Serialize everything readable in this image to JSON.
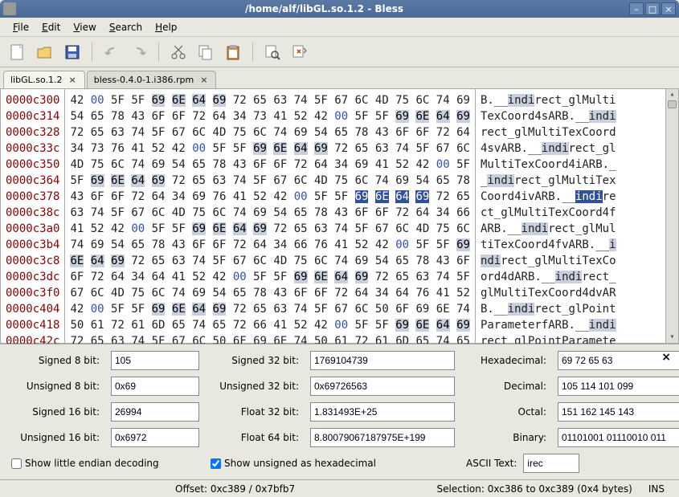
{
  "window": {
    "title": "/home/alf/libGL.so.1.2 - Bless"
  },
  "menu": [
    "File",
    "Edit",
    "View",
    "Search",
    "Help"
  ],
  "tabs": [
    {
      "label": "libGL.so.1.2",
      "active": true
    },
    {
      "label": "bless-0.4.0-1.i386.rpm",
      "active": false
    }
  ],
  "hex": {
    "offsets": [
      "0000c300",
      "0000c314",
      "0000c328",
      "0000c33c",
      "0000c350",
      "0000c364",
      "0000c378",
      "0000c38c",
      "0000c3a0",
      "0000c3b4",
      "0000c3c8",
      "0000c3dc",
      "0000c3f0",
      "0000c404",
      "0000c418",
      "0000c42c"
    ],
    "rows": [
      [
        [
          "42",
          0
        ],
        [
          "00",
          1
        ],
        [
          "5F",
          0
        ],
        [
          "5F",
          0
        ],
        [
          "69",
          2
        ],
        [
          "6E",
          2
        ],
        [
          "64",
          2
        ],
        [
          "69",
          2
        ],
        [
          "72",
          0
        ],
        [
          "65",
          0
        ],
        [
          "63",
          0
        ],
        [
          "74",
          0
        ],
        [
          "5F",
          0
        ],
        [
          "67",
          0
        ],
        [
          "6C",
          0
        ],
        [
          "4D",
          0
        ],
        [
          "75",
          0
        ],
        [
          "6C",
          0
        ],
        [
          "74",
          0
        ],
        [
          "69",
          0
        ]
      ],
      [
        [
          "54",
          0
        ],
        [
          "65",
          0
        ],
        [
          "78",
          0
        ],
        [
          "43",
          0
        ],
        [
          "6F",
          0
        ],
        [
          "6F",
          0
        ],
        [
          "72",
          0
        ],
        [
          "64",
          0
        ],
        [
          "34",
          0
        ],
        [
          "73",
          0
        ],
        [
          "41",
          0
        ],
        [
          "52",
          0
        ],
        [
          "42",
          0
        ],
        [
          "00",
          1
        ],
        [
          "5F",
          0
        ],
        [
          "5F",
          0
        ],
        [
          "69",
          2
        ],
        [
          "6E",
          2
        ],
        [
          "64",
          2
        ],
        [
          "69",
          2
        ]
      ],
      [
        [
          "72",
          0
        ],
        [
          "65",
          0
        ],
        [
          "63",
          0
        ],
        [
          "74",
          0
        ],
        [
          "5F",
          0
        ],
        [
          "67",
          0
        ],
        [
          "6C",
          0
        ],
        [
          "4D",
          0
        ],
        [
          "75",
          0
        ],
        [
          "6C",
          0
        ],
        [
          "74",
          0
        ],
        [
          "69",
          0
        ],
        [
          "54",
          0
        ],
        [
          "65",
          0
        ],
        [
          "78",
          0
        ],
        [
          "43",
          0
        ],
        [
          "6F",
          0
        ],
        [
          "6F",
          0
        ],
        [
          "72",
          0
        ],
        [
          "64",
          0
        ]
      ],
      [
        [
          "34",
          0
        ],
        [
          "73",
          0
        ],
        [
          "76",
          0
        ],
        [
          "41",
          0
        ],
        [
          "52",
          0
        ],
        [
          "42",
          0
        ],
        [
          "00",
          1
        ],
        [
          "5F",
          0
        ],
        [
          "5F",
          0
        ],
        [
          "69",
          2
        ],
        [
          "6E",
          2
        ],
        [
          "64",
          2
        ],
        [
          "69",
          2
        ],
        [
          "72",
          0
        ],
        [
          "65",
          0
        ],
        [
          "63",
          0
        ],
        [
          "74",
          0
        ],
        [
          "5F",
          0
        ],
        [
          "67",
          0
        ],
        [
          "6C",
          0
        ]
      ],
      [
        [
          "4D",
          0
        ],
        [
          "75",
          0
        ],
        [
          "6C",
          0
        ],
        [
          "74",
          0
        ],
        [
          "69",
          0
        ],
        [
          "54",
          0
        ],
        [
          "65",
          0
        ],
        [
          "78",
          0
        ],
        [
          "43",
          0
        ],
        [
          "6F",
          0
        ],
        [
          "6F",
          0
        ],
        [
          "72",
          0
        ],
        [
          "64",
          0
        ],
        [
          "34",
          0
        ],
        [
          "69",
          0
        ],
        [
          "41",
          0
        ],
        [
          "52",
          0
        ],
        [
          "42",
          0
        ],
        [
          "00",
          1
        ],
        [
          "5F",
          0
        ]
      ],
      [
        [
          "5F",
          0
        ],
        [
          "69",
          2
        ],
        [
          "6E",
          2
        ],
        [
          "64",
          2
        ],
        [
          "69",
          2
        ],
        [
          "72",
          0
        ],
        [
          "65",
          0
        ],
        [
          "63",
          0
        ],
        [
          "74",
          0
        ],
        [
          "5F",
          0
        ],
        [
          "67",
          0
        ],
        [
          "6C",
          0
        ],
        [
          "4D",
          0
        ],
        [
          "75",
          0
        ],
        [
          "6C",
          0
        ],
        [
          "74",
          0
        ],
        [
          "69",
          0
        ],
        [
          "54",
          0
        ],
        [
          "65",
          0
        ],
        [
          "78",
          0
        ]
      ],
      [
        [
          "43",
          0
        ],
        [
          "6F",
          0
        ],
        [
          "6F",
          0
        ],
        [
          "72",
          0
        ],
        [
          "64",
          0
        ],
        [
          "34",
          0
        ],
        [
          "69",
          0
        ],
        [
          "76",
          0
        ],
        [
          "41",
          0
        ],
        [
          "52",
          0
        ],
        [
          "42",
          0
        ],
        [
          "00",
          1
        ],
        [
          "5F",
          0
        ],
        [
          "5F",
          0
        ],
        [
          "69",
          3
        ],
        [
          "6E",
          3
        ],
        [
          "64",
          3
        ],
        [
          "69",
          3
        ],
        [
          "72",
          0
        ],
        [
          "65",
          0
        ]
      ],
      [
        [
          "63",
          0
        ],
        [
          "74",
          0
        ],
        [
          "5F",
          0
        ],
        [
          "67",
          0
        ],
        [
          "6C",
          0
        ],
        [
          "4D",
          0
        ],
        [
          "75",
          0
        ],
        [
          "6C",
          0
        ],
        [
          "74",
          0
        ],
        [
          "69",
          0
        ],
        [
          "54",
          0
        ],
        [
          "65",
          0
        ],
        [
          "78",
          0
        ],
        [
          "43",
          0
        ],
        [
          "6F",
          0
        ],
        [
          "6F",
          0
        ],
        [
          "72",
          0
        ],
        [
          "64",
          0
        ],
        [
          "34",
          0
        ],
        [
          "66",
          0
        ]
      ],
      [
        [
          "41",
          0
        ],
        [
          "52",
          0
        ],
        [
          "42",
          0
        ],
        [
          "00",
          1
        ],
        [
          "5F",
          0
        ],
        [
          "5F",
          0
        ],
        [
          "69",
          2
        ],
        [
          "6E",
          2
        ],
        [
          "64",
          2
        ],
        [
          "69",
          2
        ],
        [
          "72",
          0
        ],
        [
          "65",
          0
        ],
        [
          "63",
          0
        ],
        [
          "74",
          0
        ],
        [
          "5F",
          0
        ],
        [
          "67",
          0
        ],
        [
          "6C",
          0
        ],
        [
          "4D",
          0
        ],
        [
          "75",
          0
        ],
        [
          "6C",
          0
        ]
      ],
      [
        [
          "74",
          0
        ],
        [
          "69",
          0
        ],
        [
          "54",
          0
        ],
        [
          "65",
          0
        ],
        [
          "78",
          0
        ],
        [
          "43",
          0
        ],
        [
          "6F",
          0
        ],
        [
          "6F",
          0
        ],
        [
          "72",
          0
        ],
        [
          "64",
          0
        ],
        [
          "34",
          0
        ],
        [
          "66",
          0
        ],
        [
          "76",
          0
        ],
        [
          "41",
          0
        ],
        [
          "52",
          0
        ],
        [
          "42",
          0
        ],
        [
          "00",
          1
        ],
        [
          "5F",
          0
        ],
        [
          "5F",
          0
        ],
        [
          "69",
          2
        ]
      ],
      [
        [
          "6E",
          2
        ],
        [
          "64",
          2
        ],
        [
          "69",
          2
        ],
        [
          "72",
          0
        ],
        [
          "65",
          0
        ],
        [
          "63",
          0
        ],
        [
          "74",
          0
        ],
        [
          "5F",
          0
        ],
        [
          "67",
          0
        ],
        [
          "6C",
          0
        ],
        [
          "4D",
          0
        ],
        [
          "75",
          0
        ],
        [
          "6C",
          0
        ],
        [
          "74",
          0
        ],
        [
          "69",
          0
        ],
        [
          "54",
          0
        ],
        [
          "65",
          0
        ],
        [
          "78",
          0
        ],
        [
          "43",
          0
        ],
        [
          "6F",
          0
        ]
      ],
      [
        [
          "6F",
          0
        ],
        [
          "72",
          0
        ],
        [
          "64",
          0
        ],
        [
          "34",
          0
        ],
        [
          "64",
          0
        ],
        [
          "41",
          0
        ],
        [
          "52",
          0
        ],
        [
          "42",
          0
        ],
        [
          "00",
          1
        ],
        [
          "5F",
          0
        ],
        [
          "5F",
          0
        ],
        [
          "69",
          2
        ],
        [
          "6E",
          2
        ],
        [
          "64",
          2
        ],
        [
          "69",
          2
        ],
        [
          "72",
          0
        ],
        [
          "65",
          0
        ],
        [
          "63",
          0
        ],
        [
          "74",
          0
        ],
        [
          "5F",
          0
        ]
      ],
      [
        [
          "67",
          0
        ],
        [
          "6C",
          0
        ],
        [
          "4D",
          0
        ],
        [
          "75",
          0
        ],
        [
          "6C",
          0
        ],
        [
          "74",
          0
        ],
        [
          "69",
          0
        ],
        [
          "54",
          0
        ],
        [
          "65",
          0
        ],
        [
          "78",
          0
        ],
        [
          "43",
          0
        ],
        [
          "6F",
          0
        ],
        [
          "6F",
          0
        ],
        [
          "72",
          0
        ],
        [
          "64",
          0
        ],
        [
          "34",
          0
        ],
        [
          "64",
          0
        ],
        [
          "76",
          0
        ],
        [
          "41",
          0
        ],
        [
          "52",
          0
        ]
      ],
      [
        [
          "42",
          0
        ],
        [
          "00",
          1
        ],
        [
          "5F",
          0
        ],
        [
          "5F",
          0
        ],
        [
          "69",
          2
        ],
        [
          "6E",
          2
        ],
        [
          "64",
          2
        ],
        [
          "69",
          2
        ],
        [
          "72",
          0
        ],
        [
          "65",
          0
        ],
        [
          "63",
          0
        ],
        [
          "74",
          0
        ],
        [
          "5F",
          0
        ],
        [
          "67",
          0
        ],
        [
          "6C",
          0
        ],
        [
          "50",
          0
        ],
        [
          "6F",
          0
        ],
        [
          "69",
          0
        ],
        [
          "6E",
          0
        ],
        [
          "74",
          0
        ]
      ],
      [
        [
          "50",
          0
        ],
        [
          "61",
          0
        ],
        [
          "72",
          0
        ],
        [
          "61",
          0
        ],
        [
          "6D",
          0
        ],
        [
          "65",
          0
        ],
        [
          "74",
          0
        ],
        [
          "65",
          0
        ],
        [
          "72",
          0
        ],
        [
          "66",
          0
        ],
        [
          "41",
          0
        ],
        [
          "52",
          0
        ],
        [
          "42",
          0
        ],
        [
          "00",
          1
        ],
        [
          "5F",
          0
        ],
        [
          "5F",
          0
        ],
        [
          "69",
          2
        ],
        [
          "6E",
          2
        ],
        [
          "64",
          2
        ],
        [
          "69",
          2
        ]
      ],
      [
        [
          "72",
          0
        ],
        [
          "65",
          0
        ],
        [
          "63",
          0
        ],
        [
          "74",
          0
        ],
        [
          "5F",
          0
        ],
        [
          "67",
          0
        ],
        [
          "6C",
          0
        ],
        [
          "50",
          0
        ],
        [
          "6F",
          0
        ],
        [
          "69",
          0
        ],
        [
          "6E",
          0
        ],
        [
          "74",
          0
        ],
        [
          "50",
          0
        ],
        [
          "61",
          0
        ],
        [
          "72",
          0
        ],
        [
          "61",
          0
        ],
        [
          "6D",
          0
        ],
        [
          "65",
          0
        ],
        [
          "74",
          0
        ],
        [
          "65",
          0
        ]
      ]
    ],
    "ascii_rows": [
      [
        [
          "B.__",
          0
        ],
        [
          "indi",
          2
        ],
        [
          "rect_glMulti",
          0
        ]
      ],
      [
        [
          "TexCoord4sARB.__",
          0
        ],
        [
          "indi",
          2
        ]
      ],
      [
        [
          "rect_glMultiTexCoord",
          0
        ]
      ],
      [
        [
          "4svARB.__",
          0
        ],
        [
          "indi",
          2
        ],
        [
          "rect_gl",
          0
        ]
      ],
      [
        [
          "MultiTexCoord4iARB._",
          0
        ]
      ],
      [
        [
          "_",
          0
        ],
        [
          "indi",
          2
        ],
        [
          "rect_glMultiTex",
          0
        ]
      ],
      [
        [
          "Coord4ivARB.__",
          0
        ],
        [
          "indi",
          3
        ],
        [
          "re",
          0
        ]
      ],
      [
        [
          "ct_glMultiTexCoord4f",
          0
        ]
      ],
      [
        [
          "ARB.__",
          0
        ],
        [
          "indi",
          2
        ],
        [
          "rect_glMul",
          0
        ]
      ],
      [
        [
          "tiTexCoord4fvARB.__",
          0
        ],
        [
          "i",
          2
        ]
      ],
      [
        [
          "ndi",
          2
        ],
        [
          "rect_glMultiTexCo",
          0
        ]
      ],
      [
        [
          "ord4dARB.__",
          0
        ],
        [
          "indi",
          2
        ],
        [
          "rect_",
          0
        ]
      ],
      [
        [
          "glMultiTexCoord4dvAR",
          0
        ]
      ],
      [
        [
          "B.__",
          0
        ],
        [
          "indi",
          2
        ],
        [
          "rect_glPoint",
          0
        ]
      ],
      [
        [
          "ParameterfARB.__",
          0
        ],
        [
          "indi",
          2
        ]
      ],
      [
        [
          "rect_glPointParamete",
          0
        ]
      ]
    ]
  },
  "inspector": {
    "s8": "105",
    "u8": "0x69",
    "s16": "26994",
    "u16": "0x6972",
    "s32": "1769104739",
    "u32": "0x69726563",
    "f32": "1.831493E+25",
    "f64": "8.80079067187975E+199",
    "hex": "69 72 65 63",
    "dec": "105 114 101 099",
    "oct": "151 162 145 143",
    "bin": "01101001 01110010 011",
    "ascii": "irec",
    "show_little_endian": false,
    "show_unsigned_hex": true
  },
  "status": {
    "offset": "Offset: 0xc389 / 0x7bfb7",
    "selection": "Selection: 0xc386 to 0xc389 (0x4 bytes)",
    "ins": "INS"
  },
  "colors": {
    "offset_color": "#8b0000",
    "normal_byte": "#222222",
    "highlight_bg": "#c8d0e0",
    "selection_bg": "#3050a0",
    "blue_byte": "#3050c0"
  }
}
